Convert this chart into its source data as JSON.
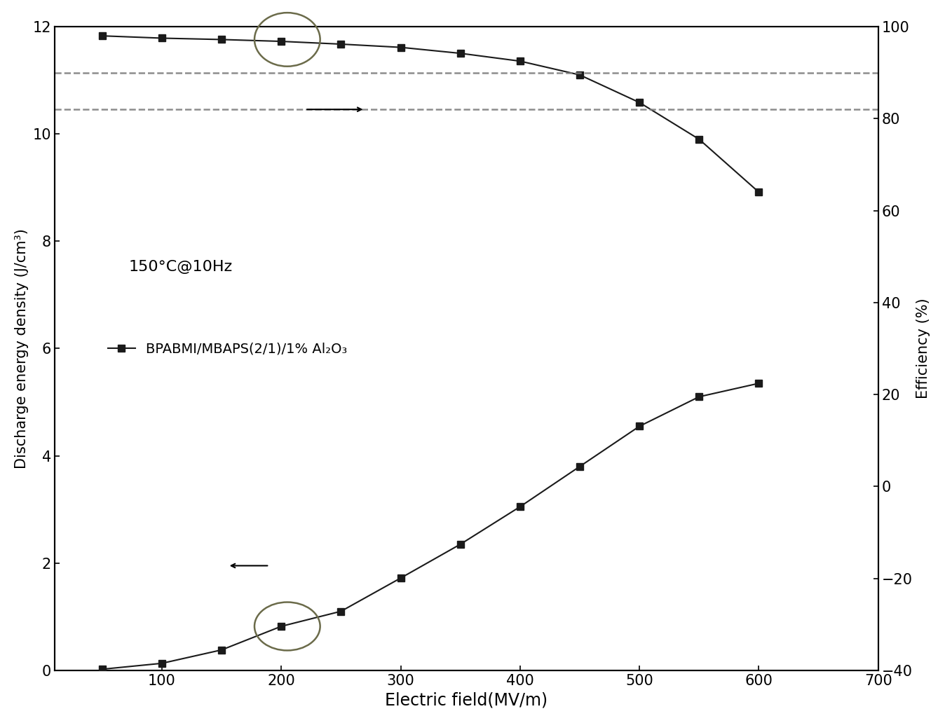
{
  "electric_field": [
    50,
    100,
    150,
    200,
    250,
    300,
    350,
    400,
    450,
    500,
    550,
    600
  ],
  "discharge_density": [
    0.02,
    0.13,
    0.38,
    0.82,
    1.1,
    1.72,
    2.35,
    3.05,
    3.8,
    4.55,
    5.1,
    5.35
  ],
  "efficiency": [
    98.0,
    97.5,
    97.2,
    96.8,
    96.2,
    95.5,
    94.2,
    92.5,
    89.5,
    83.5,
    75.5,
    64.0
  ],
  "ylabel_left": "Discharge energy density (J/cm³)",
  "ylabel_right": "Efficiency (%)",
  "xlabel": "Electric field(MV/m)",
  "annotation_text": "150°C@10Hz",
  "legend_label": "BPABMI/MBAPS(2/1)/1% Al₂O₃",
  "xlim": [
    10,
    700
  ],
  "ylim_left": [
    0,
    12
  ],
  "ylim_right": [
    -40,
    100
  ],
  "xticks": [
    100,
    200,
    300,
    400,
    500,
    600,
    700
  ],
  "yticks_left": [
    0,
    2,
    4,
    6,
    8,
    10,
    12
  ],
  "yticks_right": [
    -40,
    -20,
    0,
    20,
    40,
    60,
    80,
    100
  ],
  "hline1_eff": 90,
  "hline2_eff": 82,
  "line_color": "#1a1a1a",
  "marker": "s",
  "markersize": 7,
  "background_color": "#ffffff",
  "figsize": [
    13.48,
    10.32
  ],
  "dpi": 100,
  "upper_ellipse_x": 205,
  "upper_ellipse_y_eff": 97.2,
  "lower_ellipse_x": 205,
  "lower_ellipse_y_density": 0.82
}
